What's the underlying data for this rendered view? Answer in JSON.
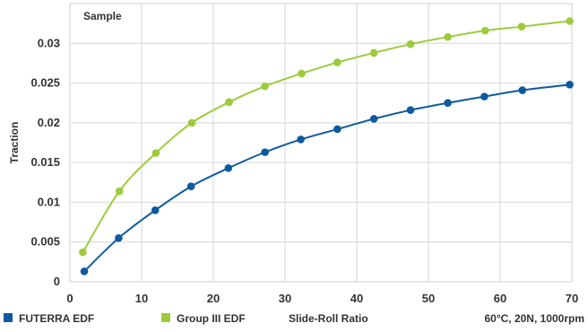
{
  "chart_data": {
    "type": "line",
    "title": "Sample",
    "xlabel": "Slide-Roll Ratio",
    "ylabel": "Traction",
    "note": "60°C, 20N, 1000rpm",
    "xlim": [
      0,
      70
    ],
    "ylim": [
      0,
      0.035
    ],
    "x_ticks": [
      0,
      10,
      20,
      30,
      40,
      50,
      60,
      70
    ],
    "y_ticks": [
      0,
      0.005,
      0.01,
      0.015,
      0.02,
      0.025,
      0.03
    ],
    "x_tick_labels": [
      "0",
      "10",
      "20",
      "30",
      "40",
      "50",
      "60",
      "70"
    ],
    "y_tick_labels": [
      "0",
      "0.005",
      "0.01",
      "0.015",
      "0.02",
      "0.025",
      "0.03"
    ],
    "grid": true,
    "legend_position": "bottom-left",
    "series": [
      {
        "name": "FUTERRA EDF",
        "color": "#0d5a9e",
        "x": [
          2,
          6.8,
          11.9,
          16.9,
          22.1,
          27.2,
          32.2,
          37.3,
          42.4,
          47.5,
          52.7,
          57.8,
          63.1,
          69.7
        ],
        "y": [
          0.0013,
          0.0055,
          0.009,
          0.012,
          0.0143,
          0.0163,
          0.0179,
          0.0192,
          0.0205,
          0.0216,
          0.0225,
          0.0233,
          0.0241,
          0.0248
        ]
      },
      {
        "name": "Group III EDF",
        "color": "#9ccb3b",
        "x": [
          1.8,
          6.9,
          12.0,
          17.0,
          22.2,
          27.2,
          32.3,
          37.3,
          42.4,
          47.5,
          52.7,
          57.9,
          63.0,
          69.7
        ],
        "y": [
          0.0037,
          0.0114,
          0.0162,
          0.02,
          0.0226,
          0.0246,
          0.0262,
          0.0276,
          0.0288,
          0.0299,
          0.0308,
          0.0316,
          0.0321,
          0.0328
        ]
      }
    ]
  }
}
